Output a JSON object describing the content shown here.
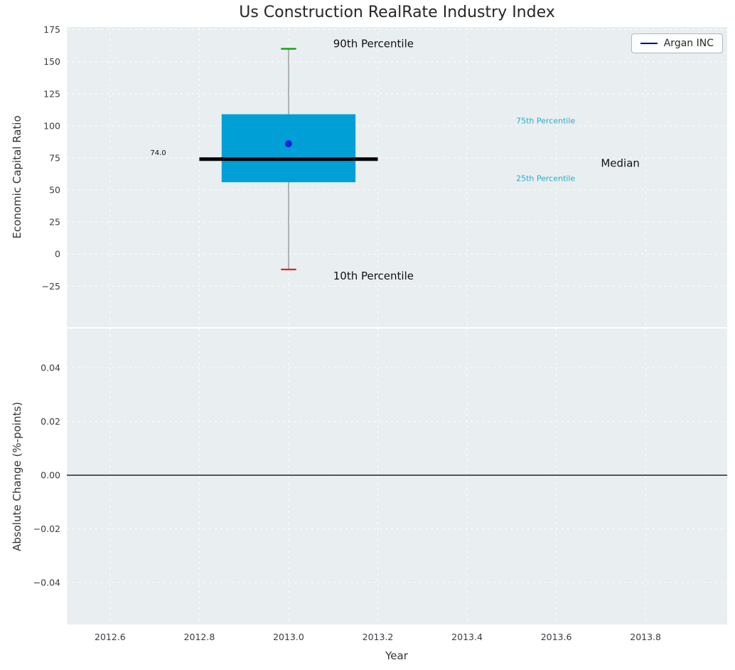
{
  "figure": {
    "title": "Us Construction RealRate Industry Index"
  },
  "legend": {
    "label": "Argan INC",
    "line_color": "#00008b"
  },
  "colors": {
    "panel_bg": "#e9eef0",
    "grid": "#ffffff",
    "box_fill": "#00a0d6",
    "median": "#000000",
    "whisker": "#8a8a8a",
    "cap_high": "#00a000",
    "cap_low": "#e02424",
    "company_point": "#2222dd",
    "tick_text": "#3a3a43",
    "percentile_text": "#25aecb",
    "zero_line": "#000000"
  },
  "chart_data": [
    {
      "type": "box",
      "title": "Us Construction RealRate Industry Index",
      "ylabel": "Economic Capital Ratio",
      "xlabel": "",
      "xlim": [
        2012.503,
        2013.983
      ],
      "ylim": [
        -57,
        177
      ],
      "yticks": [
        175,
        150,
        125,
        100,
        75,
        50,
        25,
        0,
        -25
      ],
      "ytick_labels": [
        "175",
        "150",
        "125",
        "100",
        "75",
        "50",
        "25",
        "0",
        "−25"
      ],
      "xticks": [
        2012.6,
        2012.8,
        2013.0,
        2013.2,
        2013.4,
        2013.6,
        2013.8
      ],
      "xtick_labels": [
        "2012.6",
        "2012.8",
        "2013.0",
        "2013.2",
        "2013.4",
        "2013.6",
        "2013.8"
      ],
      "show_x_tick_labels": false,
      "grid": true,
      "legend_position": "upper right",
      "box": {
        "x": 2013.0,
        "q1": 56,
        "median": 74.0,
        "q3": 109,
        "whisker_low": -12,
        "whisker_high": 160,
        "box_halfwidth": 0.15,
        "median_halfwidth": 0.2,
        "cap_halfwidth": 0.017,
        "company_name": "Argan INC",
        "company_value": 86,
        "median_label": "74.0"
      },
      "annotations": [
        {
          "text": "90th Percentile",
          "x": 2013.1,
          "y": 164,
          "color": "#111111",
          "size": 15,
          "name": "annotation-90th-percentile"
        },
        {
          "text": "10th Percentile",
          "x": 2013.1,
          "y": -17,
          "color": "#111111",
          "size": 15,
          "name": "annotation-10th-percentile"
        },
        {
          "text": "75th Percentile",
          "x": 2013.51,
          "y": 104,
          "color": "#25aecb",
          "size": 11,
          "name": "annotation-75th-percentile"
        },
        {
          "text": "25th Percentile",
          "x": 2013.51,
          "y": 59,
          "color": "#25aecb",
          "size": 11,
          "name": "annotation-25th-percentile"
        },
        {
          "text": "Median",
          "x": 2013.7,
          "y": 71,
          "color": "#111111",
          "size": 15,
          "name": "annotation-median"
        },
        {
          "text": "74.0",
          "x": 2012.69,
          "y": 79,
          "color": "#111111",
          "size": 10,
          "name": "annotation-median-value"
        }
      ]
    },
    {
      "type": "line",
      "ylabel": "Absolute Change (%-points)",
      "xlabel": "Year",
      "xlim": [
        2012.503,
        2013.983
      ],
      "ylim": [
        -0.0556,
        0.0546
      ],
      "yticks": [
        0.04,
        0.02,
        0.0,
        -0.02,
        -0.04
      ],
      "ytick_labels": [
        "0.04",
        "0.02",
        "0.00",
        "−0.02",
        "−0.04"
      ],
      "xticks": [
        2012.6,
        2012.8,
        2013.0,
        2013.2,
        2013.4,
        2013.6,
        2013.8
      ],
      "xtick_labels": [
        "2012.6",
        "2012.8",
        "2013.0",
        "2013.2",
        "2013.4",
        "2013.6",
        "2013.8"
      ],
      "show_x_tick_labels": true,
      "grid": true,
      "zero_line": 0.0
    }
  ]
}
